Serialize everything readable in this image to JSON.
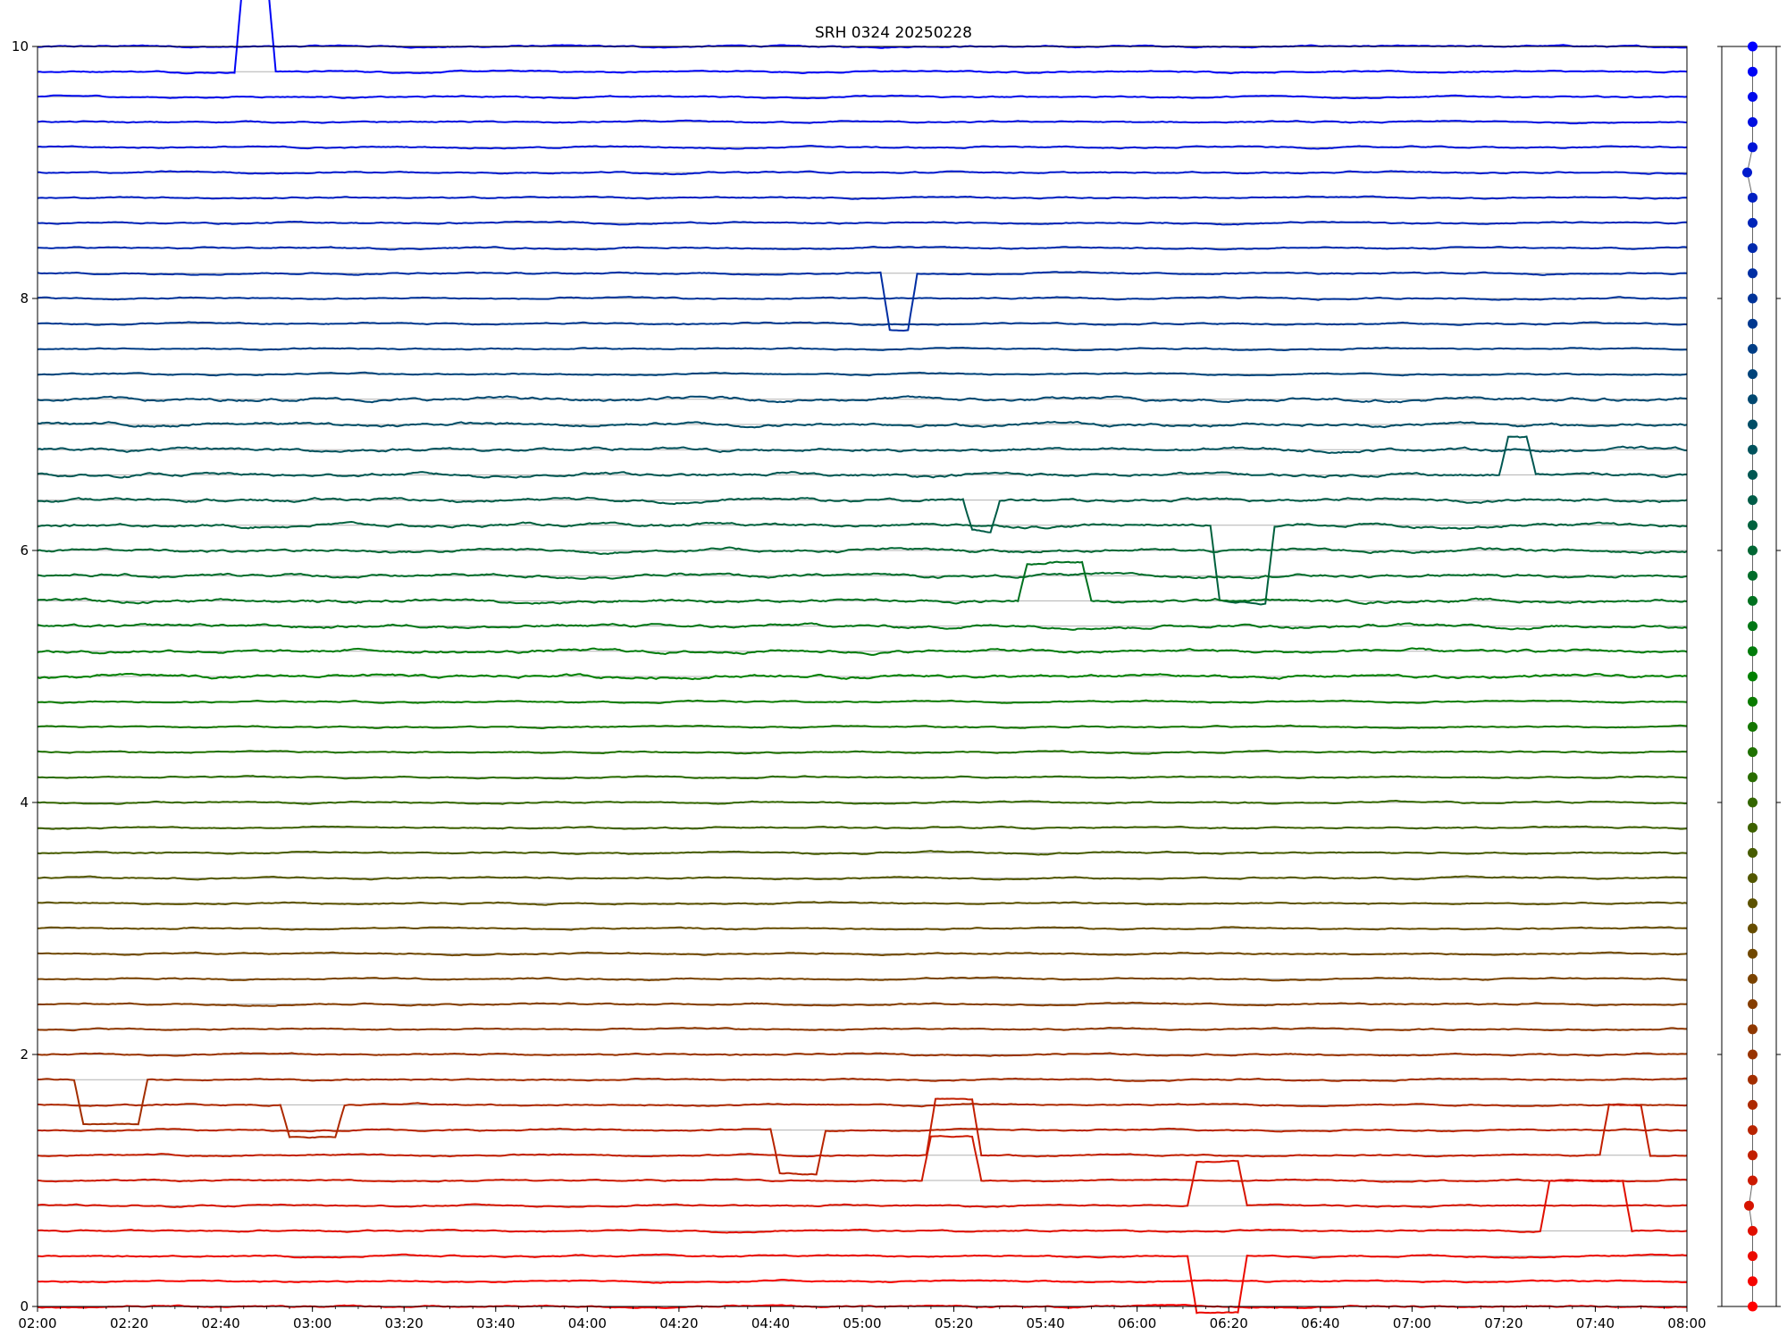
{
  "chart_data": {
    "type": "line",
    "title": "SRH 0324 20250228",
    "xlabel": "",
    "ylabel": "",
    "x_ticks": [
      "02:00",
      "02:20",
      "02:40",
      "03:00",
      "03:20",
      "03:40",
      "04:00",
      "04:20",
      "04:40",
      "05:00",
      "05:20",
      "05:40",
      "06:00",
      "06:20",
      "06:40",
      "07:00",
      "07:20",
      "07:40",
      "08:00"
    ],
    "x_range": [
      "02:00",
      "08:00"
    ],
    "y_ticks": [
      0,
      2,
      4,
      6,
      8,
      10
    ],
    "ylim": [
      0,
      10
    ],
    "grid": "horizontal lines at each trace baseline",
    "series_count": 51,
    "baseline_spacing": 0.2,
    "color_start": "#0000ff",
    "color_mid": "#008000",
    "color_end": "#ff0000",
    "side_panel": {
      "type": "scatter",
      "description_values": "channel markers",
      "x_offsets": [
        0,
        0,
        0,
        0,
        0,
        -0.6,
        0,
        0,
        0,
        0,
        0,
        0,
        0,
        0,
        0,
        0,
        0,
        0,
        0,
        0,
        0,
        0,
        0,
        0,
        0,
        0,
        0,
        0,
        0,
        0,
        0,
        0,
        0,
        0,
        0,
        0,
        0,
        0,
        0,
        0,
        0,
        0,
        0,
        0,
        0,
        0,
        -0.4,
        0,
        0,
        0,
        0
      ]
    },
    "events": [
      {
        "series": 41,
        "start": "02:10",
        "end": "02:22",
        "depth": -0.35
      },
      {
        "series": 42,
        "start": "02:55",
        "end": "03:05",
        "depth": -0.25
      },
      {
        "series": 44,
        "start": "05:16",
        "end": "05:24",
        "depth": 0.45
      },
      {
        "series": 45,
        "start": "05:15",
        "end": "05:24",
        "depth": 0.35
      },
      {
        "series": 43,
        "start": "04:42",
        "end": "04:50",
        "depth": -0.35
      },
      {
        "series": 46,
        "start": "06:13",
        "end": "06:22",
        "depth": 0.35
      },
      {
        "series": 48,
        "start": "06:13",
        "end": "06:22",
        "depth": -0.45
      },
      {
        "series": 47,
        "start": "07:30",
        "end": "07:46",
        "depth": 0.4
      },
      {
        "series": 44,
        "start": "07:43",
        "end": "07:50",
        "depth": 0.4
      },
      {
        "series": 22,
        "start": "05:36",
        "end": "05:48",
        "depth": 0.3
      },
      {
        "series": 19,
        "start": "06:18",
        "end": "06:28",
        "depth": -0.6
      },
      {
        "series": 18,
        "start": "05:24",
        "end": "05:28",
        "depth": -0.25
      },
      {
        "series": 17,
        "start": "07:21",
        "end": "07:25",
        "depth": 0.3
      },
      {
        "series": 9,
        "start": "05:06",
        "end": "05:10",
        "depth": -0.45
      },
      {
        "series": 1,
        "start": "02:45",
        "end": "02:50",
        "depth": 0.8
      }
    ]
  }
}
